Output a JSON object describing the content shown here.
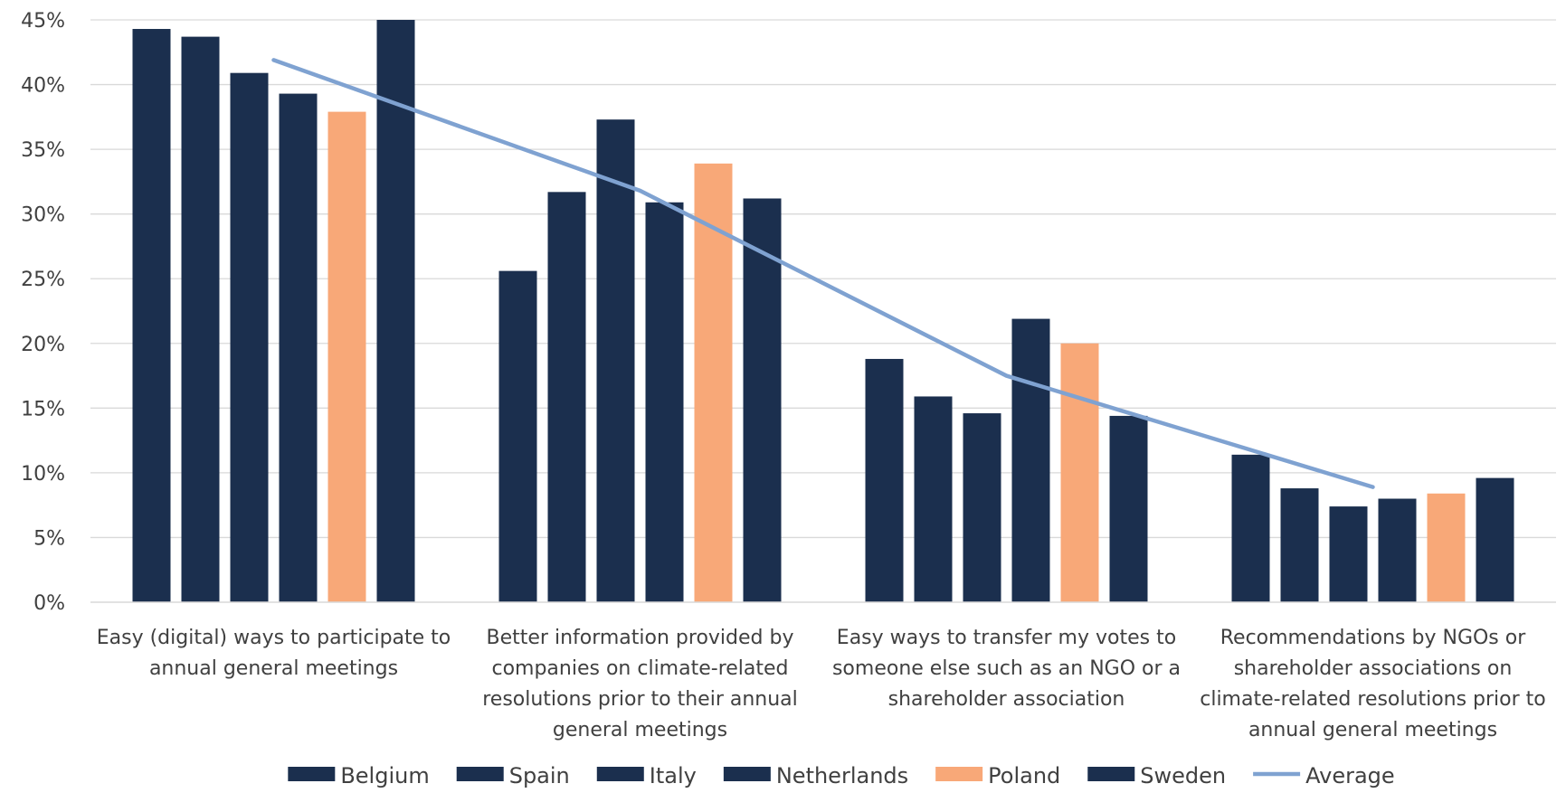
{
  "chart_data": {
    "type": "bar",
    "title": "",
    "xlabel": "",
    "ylabel": "",
    "ylim": [
      0,
      45
    ],
    "y_ticks": [
      "0%",
      "5%",
      "10%",
      "15%",
      "20%",
      "25%",
      "30%",
      "35%",
      "40%",
      "45%"
    ],
    "y_tick_values": [
      0,
      5,
      10,
      15,
      20,
      25,
      30,
      35,
      40,
      45
    ],
    "grid": "horizontal",
    "legend_position": "bottom",
    "categories": [
      [
        "Easy (digital) ways to participate to",
        "annual general meetings"
      ],
      [
        "Better information provided by",
        "companies on climate-related",
        "resolutions prior to their annual",
        "general meetings"
      ],
      [
        "Easy ways to transfer my votes to",
        "someone else such as an NGO or a",
        "shareholder association"
      ],
      [
        "Recommendations by NGOs or",
        "shareholder associations on",
        "climate-related resolutions prior to",
        "annual general meetings"
      ]
    ],
    "series": [
      {
        "name": "Belgium",
        "color": "#1b2f4e",
        "values": [
          44.3,
          25.6,
          18.8,
          11.4
        ]
      },
      {
        "name": "Spain",
        "color": "#1b2f4e",
        "values": [
          43.7,
          31.7,
          15.9,
          8.8
        ]
      },
      {
        "name": "Italy",
        "color": "#1b2f4e",
        "values": [
          40.9,
          37.3,
          14.6,
          7.4
        ]
      },
      {
        "name": "Netherlands",
        "color": "#1b2f4e",
        "values": [
          39.3,
          30.9,
          21.9,
          8.0
        ]
      },
      {
        "name": "Poland",
        "color": "#f8a878",
        "values": [
          37.9,
          33.9,
          20.0,
          8.4
        ]
      },
      {
        "name": "Sweden",
        "color": "#1b2f4e",
        "values": [
          45.0,
          31.2,
          14.4,
          9.6
        ]
      }
    ],
    "line_series": {
      "name": "Average",
      "color": "#7fa2d1",
      "values": [
        41.9,
        31.8,
        17.5,
        8.9
      ]
    }
  }
}
